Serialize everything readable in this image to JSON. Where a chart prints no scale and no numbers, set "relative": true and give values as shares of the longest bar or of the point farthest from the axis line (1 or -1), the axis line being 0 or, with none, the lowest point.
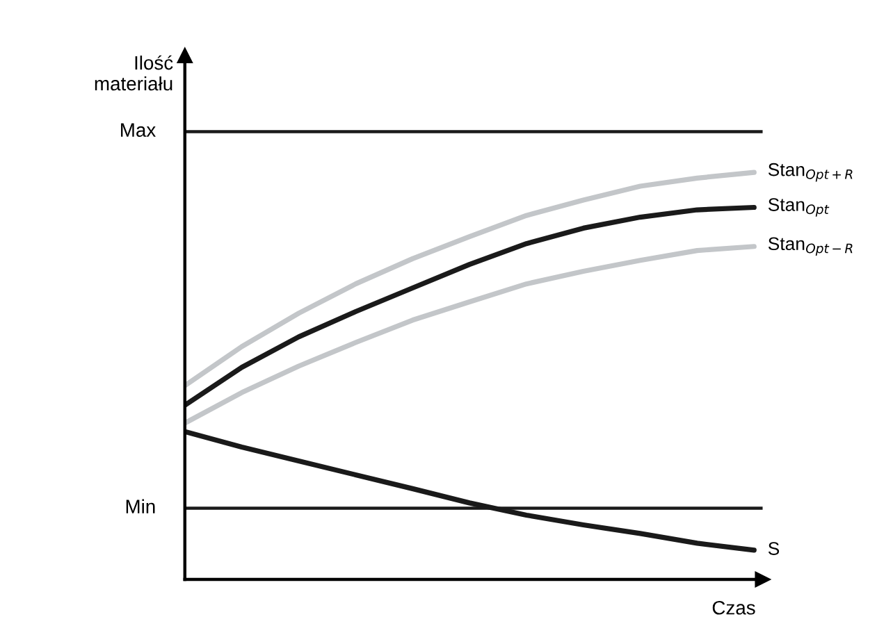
{
  "chart_data": {
    "type": "line",
    "relative": true,
    "xlabel": "Czas",
    "ylabel": "Ilość\nmateriału",
    "categories": [
      null,
      null,
      null,
      null,
      null,
      null,
      null,
      null,
      null,
      null,
      null
    ],
    "series": [
      {
        "name": "Stan$_{Opt+R}$",
        "color": "#c3c6c9",
        "values": [
          0.476,
          0.572,
          0.654,
          0.726,
          0.788,
          0.842,
          0.894,
          0.932,
          0.966,
          0.986,
          1.0
        ]
      },
      {
        "name": "Stan$_{Opt}$",
        "color": "#1a1a1a",
        "values": [
          0.428,
          0.521,
          0.596,
          0.658,
          0.716,
          0.774,
          0.825,
          0.863,
          0.89,
          0.908,
          0.914
        ]
      },
      {
        "name": "Stan$_{Opt−R}$",
        "color": "#c3c6c9",
        "values": [
          0.384,
          0.459,
          0.524,
          0.582,
          0.637,
          0.682,
          0.726,
          0.757,
          0.784,
          0.808,
          0.818
        ]
      },
      {
        "name": "S",
        "color": "#1a1a1a",
        "values": [
          0.363,
          0.325,
          0.291,
          0.257,
          0.223,
          0.188,
          0.158,
          0.134,
          0.113,
          0.089,
          0.072
        ]
      }
    ],
    "ref_lines": [
      {
        "axis": "y",
        "value": 1.1,
        "label": "Max",
        "color": "#1a1a1a"
      },
      {
        "axis": "y",
        "value": 0.175,
        "label": "Min",
        "color": "#1a1a1a"
      }
    ],
    "tick_labels": false,
    "legend": false,
    "marker": "none",
    "line_style": "solid"
  }
}
